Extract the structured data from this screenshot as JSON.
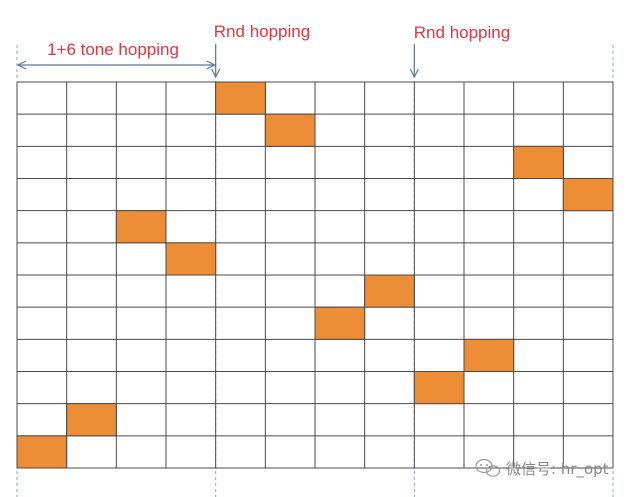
{
  "labels": {
    "range": "1+6 tone hopping",
    "hop1": "Rnd hopping",
    "hop2": "Rnd hopping"
  },
  "watermark": {
    "text": "微信号: hr_opt",
    "icon": "wechat-icon"
  },
  "grid": {
    "columns": 12,
    "rows": 12
  },
  "filled_cells": [
    {
      "col": 0,
      "row": 11
    },
    {
      "col": 1,
      "row": 10
    },
    {
      "col": 2,
      "row": 4
    },
    {
      "col": 3,
      "row": 5
    },
    {
      "col": 4,
      "row": 0
    },
    {
      "col": 5,
      "row": 1
    },
    {
      "col": 6,
      "row": 7
    },
    {
      "col": 7,
      "row": 6
    },
    {
      "col": 8,
      "row": 9
    },
    {
      "col": 9,
      "row": 8
    },
    {
      "col": 10,
      "row": 2
    },
    {
      "col": 11,
      "row": 3
    }
  ],
  "hop_boundaries": [
    0,
    4,
    8,
    12
  ],
  "colors": {
    "fill": "#ED8D35",
    "grid": "#4a4a4a",
    "dashed": "#7FA7CF",
    "label_red": "#E8333D",
    "arrow": "#5C7A94",
    "range_text": "#E8333D",
    "watermark": "#888888"
  }
}
